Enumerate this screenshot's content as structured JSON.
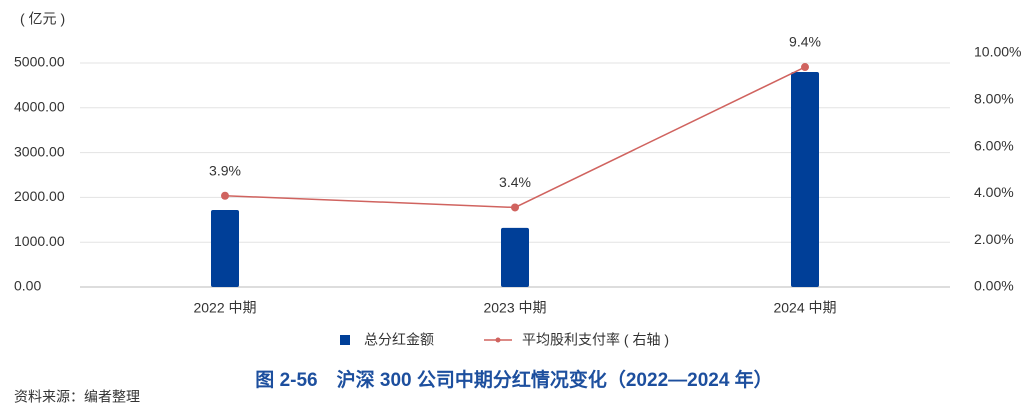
{
  "chart_data": {
    "type": "bar-line",
    "title": "图 2-56　沪深 300 公司中期分红情况变化（2022—2024 年）",
    "y_label": "( 亿元 )",
    "source": "资料来源：编者整理",
    "categories": [
      "2022 中期",
      "2023 中期",
      "2024 中期"
    ],
    "series": [
      {
        "name": "总分红金额",
        "type": "bar",
        "color": "#003f98",
        "values": [
          1720,
          1320,
          4800
        ]
      },
      {
        "name": "平均股利支付率 ( 右轴 )",
        "type": "line",
        "axis": "y2",
        "color": "#d0635f",
        "values": [
          3.9,
          3.4,
          9.4
        ],
        "value_labels": [
          "3.9%",
          "3.4%",
          "9.4%"
        ]
      }
    ],
    "ylim": [
      0,
      5000
    ],
    "yticks": [
      {
        "value": 0,
        "label": "0.00"
      },
      {
        "value": 1000,
        "label": "1000.00"
      },
      {
        "value": 2000,
        "label": "2000.00"
      },
      {
        "value": 3000,
        "label": "3000.00"
      },
      {
        "value": 4000,
        "label": "4000.00"
      },
      {
        "value": 5000,
        "label": "5000.00"
      }
    ],
    "y2lim": [
      0,
      10
    ],
    "y2ticks": [
      {
        "value": 0,
        "label": "0.00%"
      },
      {
        "value": 2,
        "label": "2.00%"
      },
      {
        "value": 4,
        "label": "4.00%"
      },
      {
        "value": 6,
        "label": "6.00%"
      },
      {
        "value": 8,
        "label": "8.00%"
      },
      {
        "value": 10,
        "label": "10.00%"
      }
    ],
    "grid": true
  }
}
